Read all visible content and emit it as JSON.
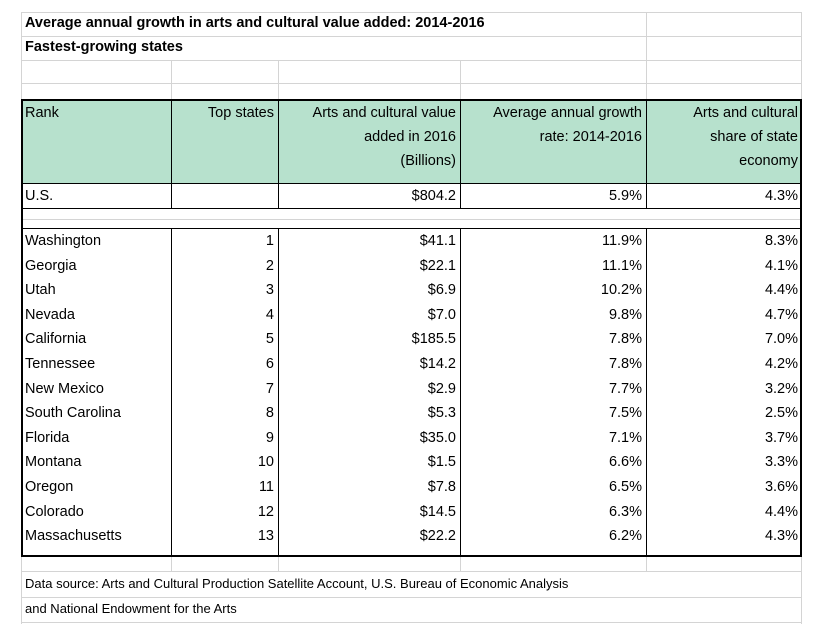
{
  "title": "Average annual growth in arts and cultural value added: 2014-2016",
  "subtitle": "Fastest-growing states",
  "headers": [
    [
      "Rank"
    ],
    [
      "Top states"
    ],
    [
      "Arts and cultural value",
      "added in 2016",
      "(Billions)"
    ],
    [
      "Average annual growth",
      "rate: 2014-2016"
    ],
    [
      "Arts and cultural",
      "share of state",
      "economy"
    ]
  ],
  "us_row": {
    "name": "U.S.",
    "rank": "",
    "value": "$804.2",
    "growth": "5.9%",
    "share": "4.3%"
  },
  "rows": [
    {
      "name": "Washington",
      "rank": "1",
      "value": "$41.1",
      "growth": "11.9%",
      "share": "8.3%"
    },
    {
      "name": "Georgia",
      "rank": "2",
      "value": "$22.1",
      "growth": "11.1%",
      "share": "4.1%"
    },
    {
      "name": "Utah",
      "rank": "3",
      "value": "$6.9",
      "growth": "10.2%",
      "share": "4.4%"
    },
    {
      "name": "Nevada",
      "rank": "4",
      "value": "$7.0",
      "growth": "9.8%",
      "share": "4.7%"
    },
    {
      "name": "California",
      "rank": "5",
      "value": "$185.5",
      "growth": "7.8%",
      "share": "7.0%"
    },
    {
      "name": "Tennessee",
      "rank": "6",
      "value": "$14.2",
      "growth": "7.8%",
      "share": "4.2%"
    },
    {
      "name": "New Mexico",
      "rank": "7",
      "value": "$2.9",
      "growth": "7.7%",
      "share": "3.2%"
    },
    {
      "name": "South Carolina",
      "rank": "8",
      "value": "$5.3",
      "growth": "7.5%",
      "share": "2.5%"
    },
    {
      "name": "Florida",
      "rank": "9",
      "value": "$35.0",
      "growth": "7.1%",
      "share": "3.7%"
    },
    {
      "name": "Montana",
      "rank": "10",
      "value": "$1.5",
      "growth": "6.6%",
      "share": "3.3%"
    },
    {
      "name": "Oregon",
      "rank": "11",
      "value": "$7.8",
      "growth": "6.5%",
      "share": "3.6%"
    },
    {
      "name": "Colorado",
      "rank": "12",
      "value": "$14.5",
      "growth": "6.3%",
      "share": "4.4%"
    },
    {
      "name": "Massachusetts",
      "rank": "13",
      "value": "$22.2",
      "growth": "6.2%",
      "share": "4.3%"
    }
  ],
  "source": {
    "line1": "Data source: Arts and Cultural Production Satellite Account, U.S. Bureau of Economic Analysis",
    "line2": "and National Endowment for the Arts"
  },
  "colors": {
    "header_fill": "#b7e1cd",
    "gridline": "#d4d4d4",
    "border": "#000000"
  }
}
